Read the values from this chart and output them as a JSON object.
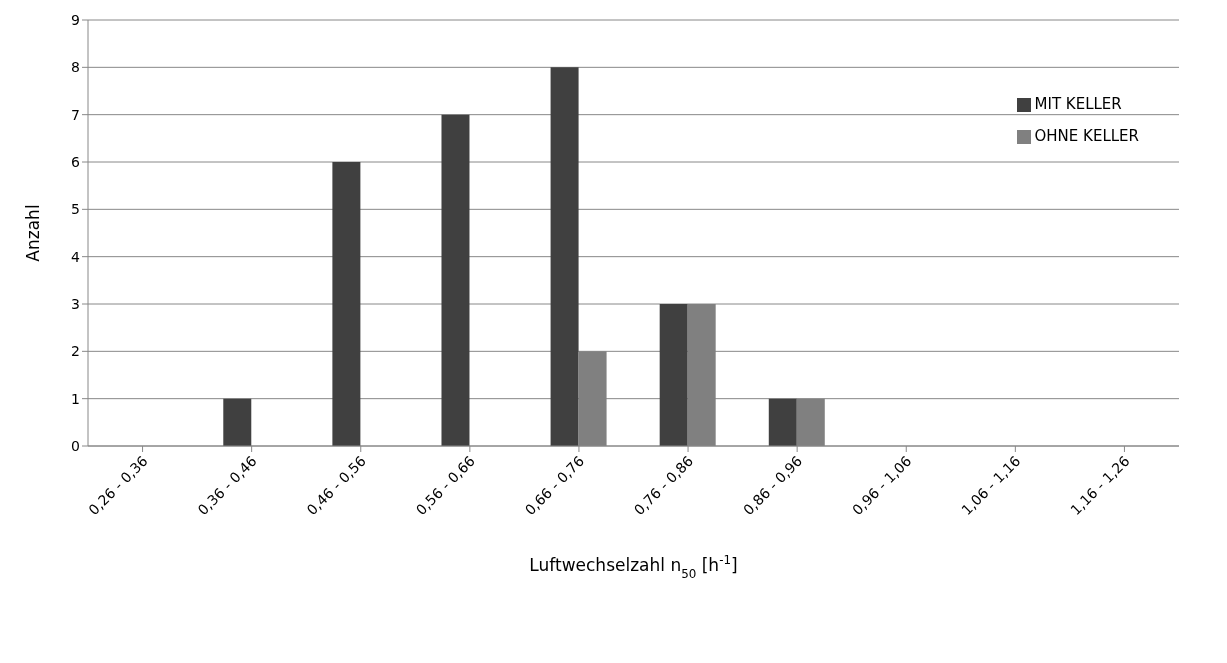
{
  "chart_data": {
    "type": "bar",
    "xlabel": "Luftwechselzahl n$_{50}$ [h$^{-1}$]",
    "ylabel": "Anzahl",
    "categories": [
      "0,26 - 0,36",
      "0,36 - 0,46",
      "0,46 - 0,56",
      "0,56 - 0,66",
      "0,66 - 0,76",
      "0,76 - 0,86",
      "0,86 - 0,96",
      "0,96 - 1,06",
      "1,06 - 1,16",
      "1,16 - 1,26"
    ],
    "series": [
      {
        "name": "MIT KELLER",
        "color": "#404040",
        "values": [
          0,
          1,
          6,
          7,
          8,
          3,
          1,
          0,
          0,
          0
        ]
      },
      {
        "name": "OHNE KELLER",
        "color": "#808080",
        "values": [
          0,
          0,
          0,
          0,
          2,
          3,
          1,
          0,
          0,
          0
        ]
      }
    ],
    "ylim": [
      0,
      9
    ],
    "yticks": [
      0,
      1,
      2,
      3,
      4,
      5,
      6,
      7,
      8,
      9
    ],
    "grid": "y",
    "legend": "top right"
  }
}
